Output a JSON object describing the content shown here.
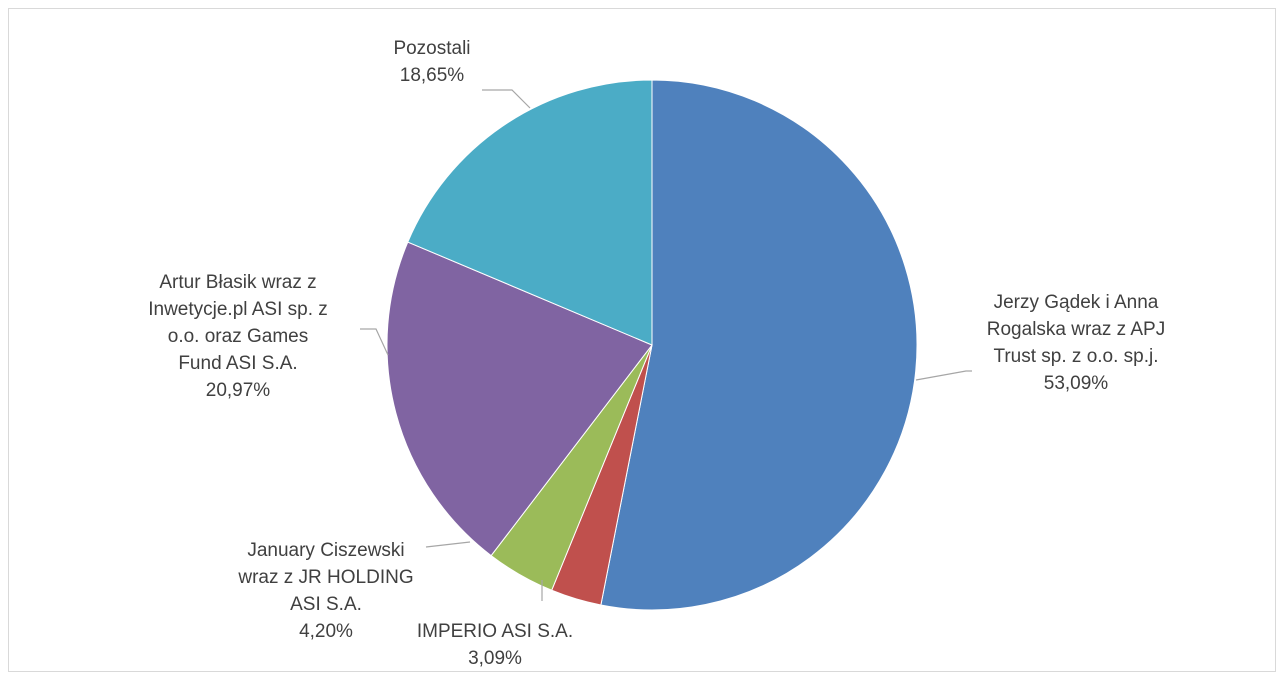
{
  "chart_data": {
    "type": "pie",
    "title": "",
    "start_angle_deg": 0,
    "direction": "clockwise",
    "slices": [
      {
        "label_lines": [
          "Jerzy Gądek i Anna",
          "Rogalska wraz z APJ",
          "Trust sp. z o.o. sp.j."
        ],
        "percent_text": "53,09%",
        "value": 53.09,
        "color": "#4f81bd"
      },
      {
        "label_lines": [
          "IMPERIO ASI S.A."
        ],
        "percent_text": "3,09%",
        "value": 3.09,
        "color": "#c0504d"
      },
      {
        "label_lines": [
          "January Ciszewski",
          "wraz z JR HOLDING",
          "ASI S.A."
        ],
        "percent_text": "4,20%",
        "value": 4.2,
        "color": "#9bbb59"
      },
      {
        "label_lines": [
          "Artur Błasik wraz z",
          "Inwetycje.pl ASI sp. z",
          "o.o. oraz  Games",
          "Fund ASI S.A."
        ],
        "percent_text": "20,97%",
        "value": 20.97,
        "color": "#8064a2"
      },
      {
        "label_lines": [
          "Pozostali"
        ],
        "percent_text": "18,65%",
        "value": 18.65,
        "color": "#4bacc6"
      }
    ]
  }
}
